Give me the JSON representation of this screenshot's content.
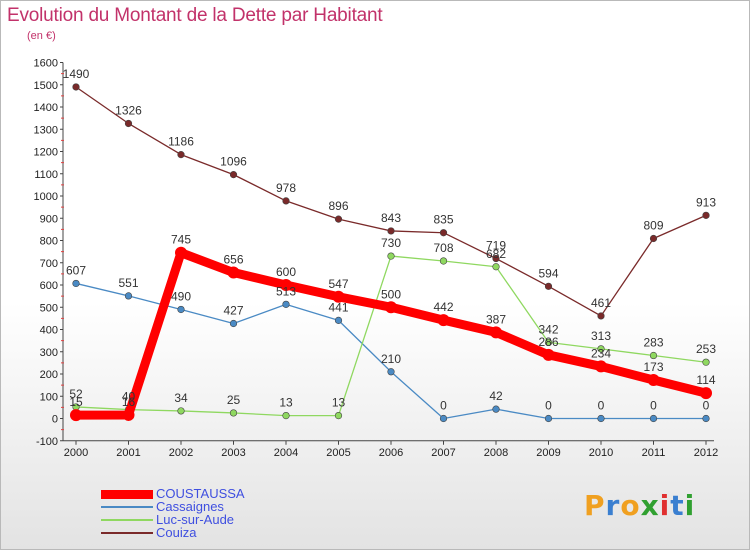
{
  "title": "Evolution du Montant de la Dette par Habitant",
  "subtitle": "(en €)",
  "logo": {
    "letters": [
      "P",
      "r",
      "o",
      "x",
      "i",
      "t",
      "i"
    ],
    "colors": [
      "#f0a020",
      "#3a7fd0",
      "#f0a020",
      "#30a030",
      "#e03030",
      "#3a7fd0",
      "#30a030"
    ]
  },
  "chart_data": {
    "type": "line",
    "x": [
      "2000",
      "2001",
      "2002",
      "2003",
      "2004",
      "2005",
      "2006",
      "2007",
      "2008",
      "2009",
      "2010",
      "2011",
      "2012"
    ],
    "ylim": [
      -100,
      1600
    ],
    "yticks": [
      -100,
      0,
      100,
      200,
      300,
      400,
      500,
      600,
      700,
      800,
      900,
      1000,
      1100,
      1200,
      1300,
      1400,
      1500,
      1600
    ],
    "grid": false,
    "legend_position": "bottom-left",
    "series": [
      {
        "name": "COUSTAUSSA",
        "color": "#ff0000",
        "values": [
          15,
          16,
          745,
          656,
          600,
          547,
          500,
          442,
          387,
          286,
          234,
          173,
          114
        ]
      },
      {
        "name": "Cassaignes",
        "color": "#4a8ac4",
        "values": [
          607,
          551,
          490,
          427,
          513,
          441,
          210,
          0,
          42,
          0,
          0,
          0,
          0
        ]
      },
      {
        "name": "Luc-sur-Aude",
        "color": "#8fd860",
        "values": [
          52,
          40,
          34,
          25,
          13,
          13,
          730,
          708,
          682,
          342,
          313,
          283,
          253
        ]
      },
      {
        "name": "Couiza",
        "color": "#7a2a2a",
        "values": [
          1490,
          1326,
          1186,
          1096,
          978,
          896,
          843,
          835,
          719,
          594,
          461,
          809,
          913
        ]
      }
    ]
  }
}
